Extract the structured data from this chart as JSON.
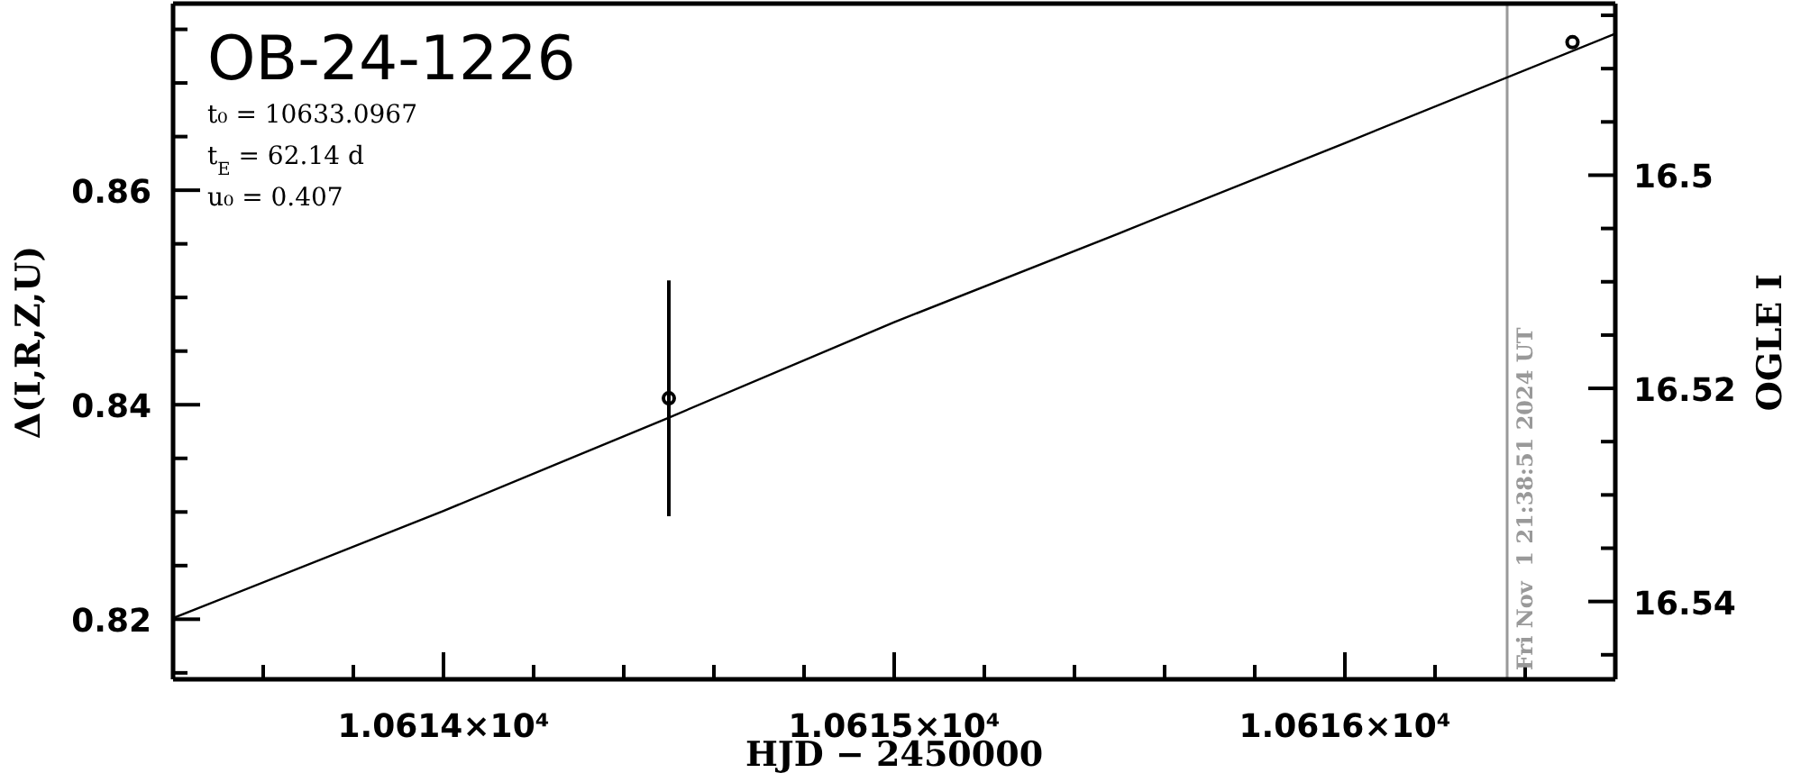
{
  "chart_data": {
    "type": "scatter",
    "title": "OB-24-1226",
    "annotations": [
      "t₀ = 10633.0967",
      "t$_{E}$ = 62.14 d",
      "u₀ = 0.407",
      {
        "text": "Fri Nov  1 21:38:51 2024 UT",
        "x": 10616.36
      }
    ],
    "xlabel": "HJD − 2450000",
    "ylabel": "Δ(I,R,Z,U)",
    "y2label": "OGLE I",
    "xlim": [
      10613.4,
      10616.6
    ],
    "xticks": [
      {
        "value": 10613.6,
        "label": null
      },
      {
        "value": 10613.8,
        "label": null
      },
      {
        "value": 10614,
        "label": "1.0614×10⁴"
      },
      {
        "value": 10614.2,
        "label": null
      },
      {
        "value": 10614.4,
        "label": null
      },
      {
        "value": 10614.6,
        "label": null
      },
      {
        "value": 10614.8,
        "label": null
      },
      {
        "value": 10615,
        "label": "1.0615×10⁴"
      },
      {
        "value": 10615.2,
        "label": null
      },
      {
        "value": 10615.4,
        "label": null
      },
      {
        "value": 10615.6,
        "label": null
      },
      {
        "value": 10615.8,
        "label": null
      },
      {
        "value": 10616,
        "label": "1.0616×10⁴"
      },
      {
        "value": 10616.2,
        "label": null
      },
      {
        "value": 10616.4,
        "label": null
      }
    ],
    "ylim": [
      0.8144,
      0.8774
    ],
    "yticks": [
      {
        "value": 0.815,
        "label": null
      },
      {
        "value": 0.82,
        "label": "0.82"
      },
      {
        "value": 0.825,
        "label": null
      },
      {
        "value": 0.83,
        "label": null
      },
      {
        "value": 0.835,
        "label": null
      },
      {
        "value": 0.84,
        "label": "0.84"
      },
      {
        "value": 0.845,
        "label": null
      },
      {
        "value": 0.85,
        "label": null
      },
      {
        "value": 0.855,
        "label": null
      },
      {
        "value": 0.86,
        "label": "0.86"
      },
      {
        "value": 0.865,
        "label": null
      },
      {
        "value": 0.87,
        "label": null
      },
      {
        "value": 0.875,
        "label": null
      }
    ],
    "y2lim": [
      16.5473,
      16.4839
    ],
    "y2ticks": [
      {
        "value": 16.485,
        "label": null
      },
      {
        "value": 16.49,
        "label": null
      },
      {
        "value": 16.495,
        "label": null
      },
      {
        "value": 16.5,
        "label": "16.5"
      },
      {
        "value": 16.505,
        "label": null
      },
      {
        "value": 16.51,
        "label": null
      },
      {
        "value": 16.515,
        "label": null
      },
      {
        "value": 16.52,
        "label": "16.52"
      },
      {
        "value": 16.525,
        "label": null
      },
      {
        "value": 16.53,
        "label": null
      },
      {
        "value": 16.535,
        "label": null
      },
      {
        "value": 16.54,
        "label": "16.54"
      },
      {
        "value": 16.545,
        "label": null
      }
    ],
    "series": [
      {
        "type": "line",
        "color": "#000000",
        "x": [
          10613.4,
          10614,
          10614.5,
          10615,
          10615.5,
          10616,
          10616.6
        ],
        "values": [
          0.8201,
          0.8301,
          0.8388,
          0.8477,
          0.856,
          0.8644,
          0.8746
        ]
      },
      {
        "type": "scatter",
        "color": "#000000",
        "marker": "circle",
        "x": [
          10614.5,
          10616.505
        ],
        "values": [
          0.8406,
          0.8738
        ],
        "errors": [
          0.011,
          null
        ]
      }
    ],
    "ref_lines": [
      {
        "axis": "x",
        "value": 10616.36,
        "color": "#999999"
      }
    ],
    "legend": false,
    "grid": false
  }
}
